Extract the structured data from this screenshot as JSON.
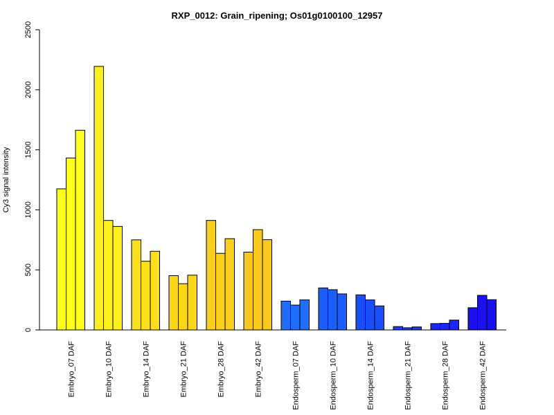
{
  "chart_data": {
    "type": "bar",
    "title": "RXP_0012: Grain_ripening; Os01g0100100_12957",
    "xlabel": "",
    "ylabel": "Cy3 signal intensity",
    "ylim": [
      0,
      2500
    ],
    "yticks": [
      "0",
      "500",
      "1000",
      "1500",
      "2000",
      "2500"
    ],
    "grid": false,
    "legend": "none",
    "categories": [
      "Embryo_07 DAF",
      "Embryo_10 DAF",
      "Embryo_14 DAF",
      "Embryo_21 DAF",
      "Embryo_28 DAF",
      "Embryo_42 DAF",
      "Endosperm_07 DAF",
      "Endosperm_10 DAF",
      "Endosperm_14 DAF",
      "Endosperm_21 DAF",
      "Endosperm_28 DAF",
      "Endosperm_42 DAF"
    ],
    "replicates_per_category": 3,
    "values": [
      [
        1175,
        1432,
        1663
      ],
      [
        2195,
        912,
        862
      ],
      [
        750,
        572,
        655
      ],
      [
        452,
        385,
        456
      ],
      [
        912,
        638,
        760
      ],
      [
        648,
        835,
        752
      ],
      [
        240,
        207,
        250
      ],
      [
        350,
        335,
        300
      ],
      [
        292,
        250,
        200
      ],
      [
        28,
        18,
        25
      ],
      [
        53,
        55,
        82
      ],
      [
        185,
        288,
        252
      ]
    ],
    "colors": [
      "#ffff1a",
      "#fdef1a",
      "#fce11a",
      "#fbd71a",
      "#f9cf1a",
      "#f8c81a",
      "#1f6eff",
      "#1a5eff",
      "#1a4fff",
      "#1a3cff",
      "#1a25ff",
      "#1a10f0"
    ]
  }
}
